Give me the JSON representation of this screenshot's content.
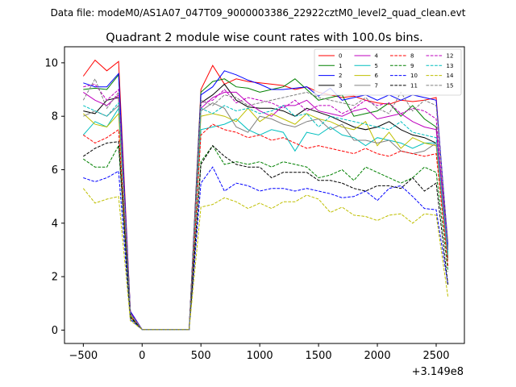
{
  "chart_data": {
    "type": "line",
    "suptitle": "Data file: modeM0/AS1A07_047T09_9000003386_22922cztM0_level2_quad_clean.evt",
    "title": "Quadrant 2 module wise count rates with 100.0s bins.",
    "xlabel": "",
    "ylabel": "",
    "x_offset_label": "+3.149e8",
    "xlim": [
      -660,
      2740
    ],
    "ylim": [
      -0.5,
      10.6
    ],
    "xticks": [
      -500,
      0,
      500,
      1000,
      1500,
      2000,
      2500
    ],
    "yticks": [
      0,
      2,
      4,
      6,
      8,
      10
    ],
    "grid": false,
    "legend": {
      "location": "top-right",
      "columns": 4
    },
    "x": [
      -500,
      -400,
      -300,
      -200,
      -100,
      0,
      100,
      200,
      300,
      400,
      500,
      600,
      700,
      800,
      900,
      1000,
      1100,
      1200,
      1300,
      1400,
      1500,
      1600,
      1700,
      1800,
      1900,
      2000,
      2100,
      2200,
      2300,
      2400,
      2500,
      2600
    ],
    "series": [
      {
        "name": "0",
        "color": "#ff0000",
        "linestyle": "solid",
        "values": [
          9.5,
          10.1,
          9.7,
          10.05,
          0.7,
          0.02,
          0.02,
          0.02,
          0.02,
          0.02,
          9.0,
          9.9,
          9.2,
          9.4,
          9.3,
          9.25,
          9.2,
          9.15,
          9.0,
          9.1,
          8.9,
          8.8,
          8.7,
          8.75,
          8.6,
          8.5,
          8.45,
          8.6,
          8.55,
          8.6,
          8.7,
          3.0
        ]
      },
      {
        "name": "1",
        "color": "#008000",
        "linestyle": "solid",
        "values": [
          9.0,
          9.05,
          9.0,
          9.55,
          0.65,
          0.02,
          0.02,
          0.02,
          0.02,
          0.02,
          8.9,
          9.3,
          9.4,
          9.1,
          9.05,
          8.9,
          9.0,
          9.1,
          9.4,
          9.0,
          8.6,
          8.7,
          8.8,
          8.0,
          8.1,
          8.2,
          8.5,
          8.0,
          8.4,
          7.9,
          7.6,
          3.1
        ]
      },
      {
        "name": "2",
        "color": "#0000ff",
        "linestyle": "solid",
        "values": [
          9.25,
          9.1,
          9.1,
          9.6,
          0.7,
          0.02,
          0.02,
          0.02,
          0.02,
          0.02,
          8.8,
          9.1,
          9.7,
          9.55,
          9.35,
          9.2,
          9.0,
          9.0,
          9.05,
          9.1,
          8.75,
          9.05,
          8.6,
          8.7,
          8.8,
          8.6,
          8.8,
          8.6,
          8.8,
          8.7,
          8.6,
          3.2
        ]
      },
      {
        "name": "3",
        "color": "#000000",
        "linestyle": "solid",
        "values": [
          8.2,
          8.1,
          8.6,
          8.7,
          0.6,
          0.02,
          0.02,
          0.02,
          0.02,
          0.02,
          8.5,
          8.8,
          9.2,
          8.6,
          8.35,
          8.3,
          8.3,
          8.2,
          8.0,
          8.3,
          8.15,
          8.0,
          7.8,
          7.6,
          7.5,
          7.6,
          7.8,
          7.5,
          7.3,
          7.2,
          7.0,
          2.7
        ]
      },
      {
        "name": "4",
        "color": "#bf00bf",
        "linestyle": "solid",
        "values": [
          8.9,
          8.6,
          8.4,
          8.8,
          0.6,
          0.02,
          0.02,
          0.02,
          0.02,
          0.02,
          8.3,
          8.7,
          8.9,
          8.9,
          8.5,
          8.2,
          8.0,
          8.4,
          8.4,
          8.6,
          8.2,
          8.1,
          8.0,
          8.2,
          8.3,
          7.9,
          8.0,
          8.1,
          7.8,
          7.6,
          7.5,
          3.0
        ]
      },
      {
        "name": "5",
        "color": "#00bfbf",
        "linestyle": "solid",
        "values": [
          7.3,
          7.8,
          7.6,
          8.3,
          0.55,
          0.02,
          0.02,
          0.02,
          0.02,
          0.02,
          7.5,
          7.6,
          7.7,
          7.9,
          7.5,
          7.3,
          7.5,
          7.4,
          6.7,
          7.4,
          7.3,
          7.6,
          7.3,
          7.2,
          6.9,
          7.2,
          7.1,
          7.0,
          6.8,
          7.0,
          7.0,
          2.8
        ]
      },
      {
        "name": "6",
        "color": "#bfbf00",
        "linestyle": "solid",
        "values": [
          8.1,
          7.7,
          7.6,
          8.1,
          0.55,
          0.02,
          0.02,
          0.02,
          0.02,
          0.02,
          8.0,
          8.1,
          8.0,
          7.8,
          8.3,
          7.8,
          8.1,
          7.9,
          7.7,
          8.1,
          7.9,
          7.8,
          7.6,
          7.5,
          7.8,
          6.9,
          7.4,
          6.8,
          7.2,
          7.0,
          6.9,
          2.6
        ]
      },
      {
        "name": "7",
        "color": "#808080",
        "linestyle": "solid",
        "values": [
          8.0,
          8.2,
          8.0,
          8.4,
          0.6,
          0.02,
          0.02,
          0.02,
          0.02,
          0.02,
          8.2,
          8.5,
          8.3,
          7.6,
          7.4,
          8.0,
          7.9,
          7.7,
          7.6,
          7.8,
          7.9,
          7.5,
          7.7,
          7.1,
          7.1,
          7.0,
          7.1,
          6.7,
          6.6,
          6.7,
          7.0,
          2.6
        ]
      },
      {
        "name": "8",
        "color": "#ff0000",
        "linestyle": "dashed",
        "values": [
          7.3,
          7.0,
          7.2,
          7.5,
          0.5,
          0.02,
          0.02,
          0.02,
          0.02,
          0.02,
          7.3,
          7.7,
          7.5,
          7.4,
          7.2,
          7.3,
          7.1,
          7.2,
          7.0,
          6.8,
          6.9,
          6.8,
          6.7,
          6.6,
          6.8,
          6.6,
          6.5,
          6.7,
          6.6,
          6.5,
          6.6,
          2.4
        ]
      },
      {
        "name": "9",
        "color": "#008000",
        "linestyle": "dashed",
        "values": [
          6.4,
          6.1,
          6.1,
          6.9,
          0.45,
          0.02,
          0.02,
          0.02,
          0.02,
          0.02,
          6.3,
          6.9,
          6.2,
          6.3,
          6.2,
          6.3,
          6.1,
          6.3,
          6.2,
          6.1,
          5.7,
          5.8,
          6.0,
          5.6,
          6.1,
          5.9,
          5.7,
          5.5,
          5.7,
          6.1,
          5.9,
          2.2
        ]
      },
      {
        "name": "10",
        "color": "#0000ff",
        "linestyle": "dashed",
        "values": [
          5.7,
          5.55,
          5.7,
          5.95,
          0.4,
          0.02,
          0.02,
          0.02,
          0.02,
          0.02,
          5.5,
          6.1,
          5.2,
          5.5,
          5.4,
          5.2,
          5.3,
          5.3,
          5.2,
          5.3,
          5.2,
          5.1,
          4.95,
          5.0,
          5.2,
          4.85,
          5.3,
          5.4,
          5.0,
          4.55,
          4.5,
          1.7
        ]
      },
      {
        "name": "11",
        "color": "#000000",
        "linestyle": "dashed",
        "values": [
          6.5,
          6.8,
          7.0,
          7.05,
          0.5,
          0.02,
          0.02,
          0.02,
          0.02,
          0.02,
          6.2,
          6.9,
          6.5,
          6.2,
          6.1,
          6.1,
          5.7,
          5.9,
          5.9,
          5.9,
          5.6,
          5.6,
          5.5,
          5.3,
          5.2,
          5.4,
          5.4,
          5.3,
          5.7,
          5.2,
          5.5,
          1.7
        ]
      },
      {
        "name": "12",
        "color": "#bf00bf",
        "linestyle": "dashed",
        "values": [
          9.1,
          9.2,
          8.6,
          9.0,
          0.65,
          0.02,
          0.02,
          0.02,
          0.02,
          0.02,
          8.5,
          8.6,
          9.0,
          8.5,
          8.7,
          8.6,
          8.5,
          8.3,
          8.6,
          8.2,
          8.4,
          8.4,
          8.1,
          8.3,
          8.6,
          8.4,
          8.5,
          8.1,
          8.3,
          8.2,
          7.9,
          3.0
        ]
      },
      {
        "name": "13",
        "color": "#00bfbf",
        "linestyle": "dashed",
        "values": [
          8.4,
          8.2,
          8.0,
          8.5,
          0.6,
          0.02,
          0.02,
          0.02,
          0.02,
          0.02,
          8.3,
          8.1,
          8.4,
          8.2,
          8.3,
          8.1,
          8.2,
          8.4,
          8.0,
          8.1,
          7.6,
          8.0,
          7.9,
          7.8,
          7.7,
          7.6,
          7.5,
          7.8,
          7.4,
          7.3,
          7.2,
          2.9
        ]
      },
      {
        "name": "14",
        "color": "#bfbf00",
        "linestyle": "dashed",
        "values": [
          5.3,
          4.75,
          4.9,
          5.0,
          0.35,
          0.02,
          0.02,
          0.02,
          0.02,
          0.02,
          4.6,
          4.7,
          4.95,
          4.8,
          4.55,
          4.75,
          4.55,
          4.8,
          4.8,
          5.05,
          4.9,
          4.4,
          4.6,
          4.3,
          4.25,
          4.1,
          4.3,
          4.35,
          4.0,
          4.35,
          4.3,
          1.25
        ]
      },
      {
        "name": "15",
        "color": "#808080",
        "linestyle": "dashed",
        "values": [
          8.6,
          9.4,
          8.3,
          8.9,
          0.6,
          0.02,
          0.02,
          0.02,
          0.02,
          0.02,
          8.6,
          8.4,
          8.8,
          8.7,
          8.4,
          8.5,
          8.6,
          8.7,
          8.8,
          8.9,
          8.7,
          8.6,
          8.5,
          8.4,
          8.7,
          8.3,
          8.1,
          8.9,
          8.2,
          8.6,
          8.4,
          3.3
        ]
      }
    ]
  }
}
